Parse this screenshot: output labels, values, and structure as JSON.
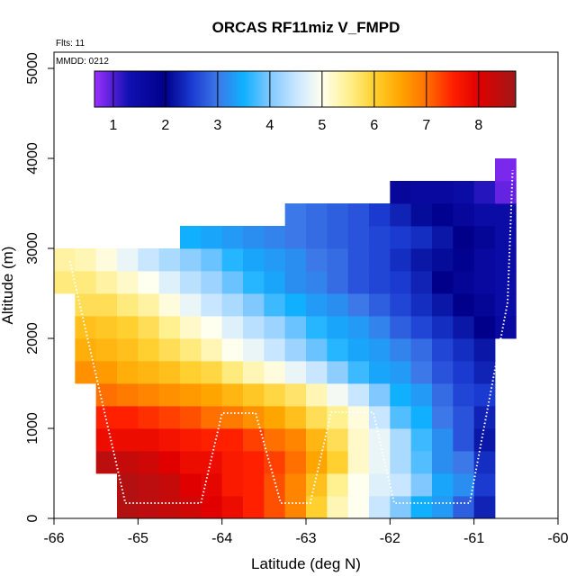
{
  "chart_data": {
    "type": "heatmap",
    "title": "ORCAS RF11miz V_FMPD",
    "notes": [
      "Flts: 11",
      "MMDD: 0212"
    ],
    "xlabel": "Latitude (deg N)",
    "ylabel": "Altitude (m)",
    "xlim": [
      -66,
      -60
    ],
    "ylim": [
      0,
      5180
    ],
    "xticks": [
      -66,
      -65,
      -64,
      -63,
      -62,
      -61,
      -60
    ],
    "yticks": [
      0,
      1000,
      2000,
      3000,
      4000,
      5000
    ],
    "xbins": [
      -66,
      -65.75,
      -65.5,
      -65.25,
      -65,
      -64.75,
      -64.5,
      -64.25,
      -64,
      -63.75,
      -63.5,
      -63.25,
      -63,
      -62.75,
      -62.5,
      -62.25,
      -62,
      -61.75,
      -61.5,
      -61.25,
      -61,
      -60.75,
      -60.5
    ],
    "ybins": [
      0,
      250,
      500,
      750,
      1000,
      1250,
      1500,
      1750,
      2000,
      2250,
      2500,
      2750,
      3000,
      3250,
      3500,
      3750,
      4000
    ],
    "z": [
      [
        null,
        null,
        null,
        8.5,
        8.4,
        8.3,
        8.2,
        8.0,
        7.8,
        7.5,
        7.2,
        6.8,
        6.0,
        5.3,
        5.0,
        4.5,
        4.0,
        3.5,
        3.3,
        2.8,
        2.3,
        null
      ],
      [
        null,
        null,
        null,
        8.5,
        8.4,
        8.3,
        8.0,
        7.9,
        7.6,
        7.5,
        7.2,
        6.8,
        6.2,
        5.5,
        5.0,
        4.7,
        4.5,
        4.0,
        3.4,
        3.2,
        2.5,
        null
      ],
      [
        null,
        null,
        8.4,
        8.3,
        8.2,
        8.0,
        7.8,
        7.8,
        7.6,
        7.5,
        7.3,
        7.0,
        6.5,
        6.0,
        5.2,
        4.8,
        4.3,
        3.8,
        3.2,
        3.0,
        2.4,
        null
      ],
      [
        null,
        null,
        7.8,
        7.8,
        7.8,
        7.7,
        7.6,
        7.5,
        7.5,
        7.3,
        7.0,
        6.8,
        6.3,
        5.8,
        5.2,
        4.8,
        4.3,
        3.7,
        3.2,
        2.7,
        2.2,
        null
      ],
      [
        null,
        null,
        7.5,
        7.5,
        7.4,
        7.3,
        7.2,
        7.0,
        6.9,
        6.7,
        6.5,
        6.2,
        5.8,
        5.5,
        5.1,
        4.5,
        3.8,
        3.5,
        3.0,
        2.7,
        2.3,
        null
      ],
      [
        null,
        null,
        7.0,
        6.9,
        6.8,
        6.7,
        6.6,
        6.5,
        6.3,
        6.1,
        5.9,
        5.7,
        5.3,
        4.9,
        4.5,
        4.0,
        3.5,
        3.3,
        2.9,
        2.6,
        2.5,
        null
      ],
      [
        null,
        6.7,
        6.6,
        6.4,
        6.3,
        6.2,
        6.0,
        5.9,
        5.6,
        5.3,
        5.1,
        4.8,
        4.5,
        4.1,
        3.7,
        3.4,
        3.3,
        3.0,
        2.7,
        2.5,
        2.3,
        null
      ],
      [
        null,
        6.4,
        6.3,
        6.2,
        6.0,
        5.8,
        5.6,
        5.3,
        5.0,
        4.8,
        4.5,
        4.2,
        3.9,
        3.6,
        3.4,
        3.3,
        3.1,
        2.9,
        2.6,
        2.4,
        2.2,
        null
      ],
      [
        null,
        6.2,
        6.1,
        6.0,
        5.8,
        5.5,
        5.2,
        5.0,
        4.7,
        4.4,
        4.2,
        3.9,
        3.6,
        3.4,
        3.3,
        3.1,
        2.8,
        2.6,
        2.4,
        2.2,
        2.0,
        1.6
      ],
      [
        null,
        5.8,
        5.8,
        5.6,
        5.4,
        5.1,
        4.8,
        4.5,
        4.3,
        4.0,
        3.7,
        3.5,
        3.3,
        3.2,
        3.0,
        2.8,
        2.6,
        2.4,
        2.2,
        2.0,
        1.8,
        1.5
      ],
      [
        5.6,
        5.6,
        5.4,
        5.2,
        5.0,
        4.7,
        4.4,
        4.2,
        3.9,
        3.6,
        3.4,
        3.2,
        3.1,
        2.9,
        2.7,
        2.6,
        2.5,
        2.3,
        2.0,
        1.8,
        1.6,
        1.5
      ],
      [
        5.4,
        5.3,
        5.1,
        4.8,
        4.5,
        4.3,
        4.1,
        3.9,
        3.6,
        3.4,
        3.3,
        3.2,
        3.0,
        2.9,
        2.7,
        2.6,
        2.4,
        2.2,
        2.1,
        1.9,
        1.6,
        1.5
      ],
      [
        null,
        null,
        null,
        null,
        null,
        null,
        3.5,
        3.4,
        3.3,
        3.2,
        3.1,
        3.0,
        2.9,
        2.8,
        2.7,
        2.6,
        2.5,
        2.4,
        2.2,
        2.0,
        1.8,
        1.5
      ],
      [
        null,
        null,
        null,
        null,
        null,
        null,
        null,
        null,
        null,
        null,
        null,
        3.0,
        2.9,
        2.8,
        2.7,
        2.5,
        2.3,
        2.1,
        1.9,
        1.7,
        1.5,
        1.5
      ],
      [
        null,
        null,
        null,
        null,
        null,
        null,
        null,
        null,
        null,
        null,
        null,
        null,
        null,
        null,
        null,
        null,
        1.7,
        1.6,
        1.6,
        1.5,
        1.2,
        0.9
      ],
      [
        null,
        null,
        null,
        null,
        null,
        null,
        null,
        null,
        null,
        null,
        null,
        null,
        null,
        null,
        null,
        null,
        null,
        null,
        null,
        null,
        null,
        0.8
      ]
    ],
    "zlim": [
      0.64,
      8.71
    ],
    "zticks": [
      1,
      2,
      3,
      4,
      5,
      6,
      7,
      8
    ],
    "colorscale": [
      [
        0.64,
        "#9b30ff"
      ],
      [
        1.3,
        "#1010b0"
      ],
      [
        2,
        "#00008b"
      ],
      [
        2.5,
        "#1a3ad0"
      ],
      [
        3,
        "#3c78e8"
      ],
      [
        3.5,
        "#10b0ff"
      ],
      [
        4,
        "#80c8ff"
      ],
      [
        4.5,
        "#c8e6ff"
      ],
      [
        5,
        "#fffff0"
      ],
      [
        5.5,
        "#fff090"
      ],
      [
        6,
        "#ffd030"
      ],
      [
        6.5,
        "#ffa500"
      ],
      [
        7,
        "#ff7000"
      ],
      [
        7.5,
        "#ff2000"
      ],
      [
        8,
        "#e00000"
      ],
      [
        8.71,
        "#a01818"
      ]
    ],
    "track": {
      "color": "#ffffff",
      "x": [
        -65.81,
        -65.6,
        -65.15,
        -64.25,
        -64.0,
        -63.6,
        -63.3,
        -62.95,
        -62.7,
        -62.2,
        -61.95,
        -61.05,
        -60.6,
        -60.54
      ],
      "y": [
        2860,
        2000,
        170,
        170,
        1170,
        1170,
        170,
        170,
        1180,
        1180,
        170,
        170,
        2400,
        3870
      ]
    }
  }
}
